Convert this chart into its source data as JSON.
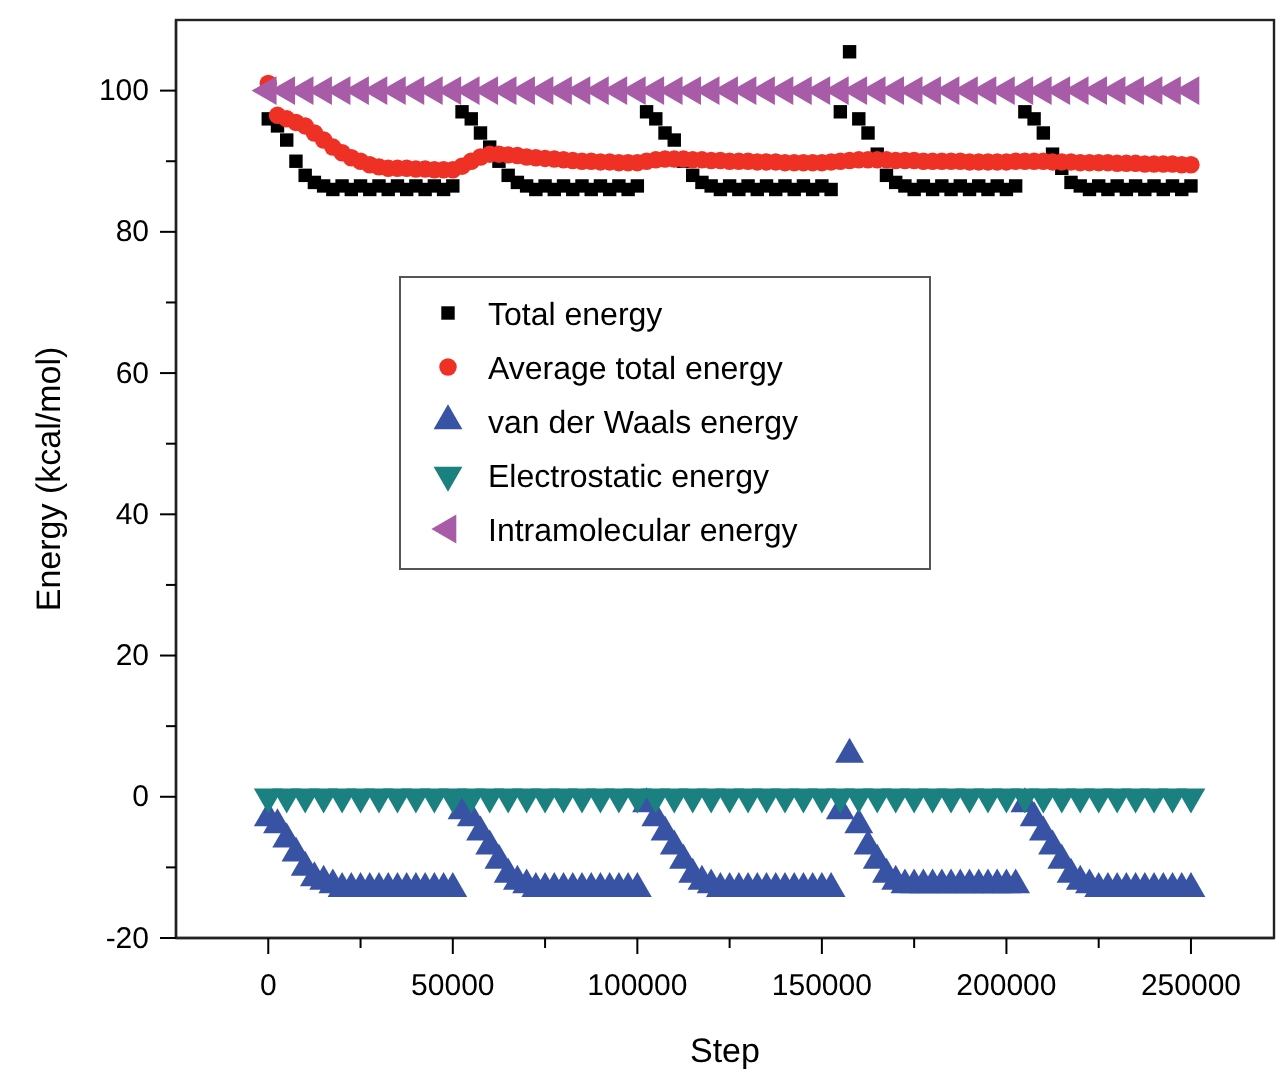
{
  "chart_data": {
    "type": "scatter",
    "xlabel": "Step",
    "ylabel": "Energy (kcal/mol)",
    "xlim": [
      -25000,
      272500
    ],
    "ylim": [
      -20,
      110
    ],
    "xticks": [
      0,
      {
        "value": 25000,
        "label": null
      },
      50000,
      {
        "value": 75000,
        "label": null
      },
      100000,
      {
        "value": 125000,
        "label": null
      },
      150000,
      {
        "value": 175000,
        "label": null
      },
      200000,
      {
        "value": 225000,
        "label": null
      },
      250000
    ],
    "yticks": [
      -20,
      {
        "value": -10,
        "label": null
      },
      0,
      {
        "value": 10,
        "label": null
      },
      20,
      {
        "value": 30,
        "label": null
      },
      40,
      {
        "value": 50,
        "label": null
      },
      60,
      {
        "value": 70,
        "label": null
      },
      80,
      {
        "value": 90,
        "label": null
      },
      100
    ],
    "legend": "center",
    "grid": false,
    "x": [
      0,
      2500,
      5000,
      7500,
      10000,
      12500,
      15000,
      17500,
      20000,
      22500,
      25000,
      27500,
      30000,
      32500,
      35000,
      37500,
      40000,
      42500,
      45000,
      47500,
      50000,
      52500,
      55000,
      57500,
      60000,
      62500,
      65000,
      67500,
      70000,
      72500,
      75000,
      77500,
      80000,
      82500,
      85000,
      87500,
      90000,
      92500,
      95000,
      97500,
      100000,
      102500,
      105000,
      107500,
      110000,
      112500,
      115000,
      117500,
      120000,
      122500,
      125000,
      127500,
      130000,
      132500,
      135000,
      137500,
      140000,
      142500,
      145000,
      147500,
      150000,
      152500,
      155000,
      157500,
      160000,
      162500,
      165000,
      167500,
      170000,
      172500,
      175000,
      177500,
      180000,
      182500,
      185000,
      187500,
      190000,
      192500,
      195000,
      197500,
      200000,
      202500,
      205000,
      207500,
      210000,
      212500,
      215000,
      217500,
      220000,
      222500,
      225000,
      227500,
      230000,
      232500,
      235000,
      237500,
      240000,
      242500,
      245000,
      247500,
      250000
    ],
    "series": [
      {
        "name": "Total energy",
        "color": "#000000",
        "marker": "square",
        "values": [
          96,
          95,
          93,
          90,
          88,
          87,
          86.5,
          86,
          86.5,
          86,
          86.5,
          86,
          86.5,
          86,
          86.5,
          86,
          86.5,
          86,
          86.5,
          86,
          86.5,
          97,
          96,
          94,
          92,
          90,
          88,
          87,
          86.5,
          86,
          86.5,
          86,
          86.5,
          86,
          86.5,
          86,
          86.5,
          86,
          86.5,
          86,
          86.5,
          97,
          96,
          94,
          93,
          90,
          88,
          87,
          86.5,
          86,
          86.5,
          86,
          86.5,
          86,
          86.5,
          86,
          86.5,
          86,
          86.5,
          86,
          86.5,
          86,
          97,
          105.5,
          96,
          94,
          91,
          88,
          87,
          86.5,
          86,
          86.5,
          86,
          86.5,
          86,
          86.5,
          86,
          86.5,
          86,
          86.5,
          86,
          86.5,
          97,
          96,
          94,
          91,
          89,
          87,
          86.5,
          86,
          86.5,
          86,
          86.5,
          86,
          86.5,
          86,
          86.5,
          86,
          86.5,
          86,
          86.5
        ]
      },
      {
        "name": "Average total energy",
        "color": "#ee3124",
        "marker": "circle",
        "values": [
          101,
          96.5,
          96,
          95.5,
          95,
          94,
          93,
          92,
          91.2,
          90.5,
          90,
          89.5,
          89.2,
          89,
          89,
          89,
          88.9,
          88.9,
          88.8,
          88.8,
          88.8,
          89.3,
          90,
          90.6,
          91,
          91,
          90.9,
          90.8,
          90.6,
          90.5,
          90.4,
          90.3,
          90.2,
          90.1,
          90,
          90,
          89.9,
          89.9,
          89.8,
          89.8,
          89.8,
          90,
          90.2,
          90.3,
          90.3,
          90.3,
          90.2,
          90.2,
          90.1,
          90.1,
          90,
          90,
          90,
          89.9,
          89.9,
          89.9,
          89.8,
          89.8,
          89.8,
          89.8,
          89.8,
          89.9,
          90,
          90.1,
          90.2,
          90.2,
          90.2,
          90.2,
          90.1,
          90.1,
          90.1,
          90,
          90,
          90,
          90,
          90,
          89.9,
          89.9,
          89.9,
          89.9,
          89.9,
          90,
          90,
          90,
          90,
          89.9,
          89.9,
          89.9,
          89.8,
          89.8,
          89.8,
          89.8,
          89.7,
          89.7,
          89.7,
          89.6,
          89.6,
          89.6,
          89.6,
          89.5,
          89.5
        ]
      },
      {
        "name": "van der Waals energy",
        "color": "#3953a4",
        "marker": "triangle",
        "values": [
          -3,
          -4,
          -6,
          -8,
          -10,
          -11.5,
          -12,
          -12.5,
          -13,
          -13,
          -13,
          -13,
          -13,
          -13,
          -13,
          -13,
          -13,
          -13,
          -13,
          -13,
          -13,
          -2,
          -3,
          -5,
          -7,
          -9,
          -11,
          -12,
          -12.5,
          -13,
          -13,
          -13,
          -13,
          -13,
          -13,
          -13,
          -13,
          -13,
          -13,
          -13,
          -13,
          -1,
          -3,
          -5,
          -7,
          -9,
          -11,
          -12,
          -12.5,
          -13,
          -13,
          -13,
          -13,
          -13,
          -13,
          -13,
          -13,
          -13,
          -13,
          -13,
          -13,
          -13,
          -2,
          6,
          -4,
          -7,
          -9,
          -11,
          -12,
          -12.5,
          -12.5,
          -12.5,
          -12.5,
          -12.5,
          -12.5,
          -12.5,
          -12.5,
          -12.5,
          -12.5,
          -12.5,
          -12.5,
          -12.5,
          -1,
          -3,
          -5,
          -7,
          -9,
          -11,
          -12,
          -12.5,
          -13,
          -13,
          -13,
          -13,
          -13,
          -13,
          -13,
          -13,
          -13,
          -13,
          -13
        ]
      },
      {
        "name": "Electrostatic energy",
        "color": "#1a8080",
        "marker": "triangle-down",
        "x": [
          0,
          5000,
          10000,
          15000,
          20000,
          25000,
          30000,
          35000,
          40000,
          45000,
          50000,
          55000,
          60000,
          65000,
          70000,
          75000,
          80000,
          85000,
          90000,
          95000,
          100000,
          105000,
          110000,
          115000,
          120000,
          125000,
          130000,
          135000,
          140000,
          145000,
          150000,
          155000,
          160000,
          165000,
          170000,
          175000,
          180000,
          185000,
          190000,
          195000,
          200000,
          205000,
          210000,
          215000,
          220000,
          225000,
          230000,
          235000,
          240000,
          245000,
          250000
        ],
        "values": [
          0,
          0,
          0,
          0,
          0,
          0,
          0,
          0,
          0,
          0,
          0,
          0,
          0,
          0,
          0,
          0,
          0,
          0,
          0,
          0,
          0,
          0,
          0,
          0,
          0,
          0,
          0,
          0,
          0,
          0,
          0,
          0,
          0,
          0,
          0,
          0,
          0,
          0,
          0,
          0,
          0,
          0,
          0,
          0,
          0,
          0,
          0,
          0,
          0,
          0,
          0
        ]
      },
      {
        "name": "Intramolecular energy",
        "color": "#a85ca8",
        "marker": "triangle-left",
        "x": [
          0,
          5000,
          10000,
          15000,
          20000,
          25000,
          30000,
          35000,
          40000,
          45000,
          50000,
          55000,
          60000,
          65000,
          70000,
          75000,
          80000,
          85000,
          90000,
          95000,
          100000,
          105000,
          110000,
          115000,
          120000,
          125000,
          130000,
          135000,
          140000,
          145000,
          150000,
          155000,
          160000,
          165000,
          170000,
          175000,
          180000,
          185000,
          190000,
          195000,
          200000,
          205000,
          210000,
          215000,
          220000,
          225000,
          230000,
          235000,
          240000,
          245000,
          250000
        ],
        "values": [
          100,
          100,
          100,
          100,
          100,
          100,
          100,
          100,
          100,
          100,
          100,
          100,
          100,
          100,
          100,
          100,
          100,
          100,
          100,
          100,
          100,
          100,
          100,
          100,
          100,
          100,
          100,
          100,
          100,
          100,
          100,
          100,
          100,
          100,
          100,
          100,
          100,
          100,
          100,
          100,
          100,
          100,
          100,
          100,
          100,
          100,
          100,
          100,
          100,
          100,
          100
        ]
      }
    ]
  }
}
